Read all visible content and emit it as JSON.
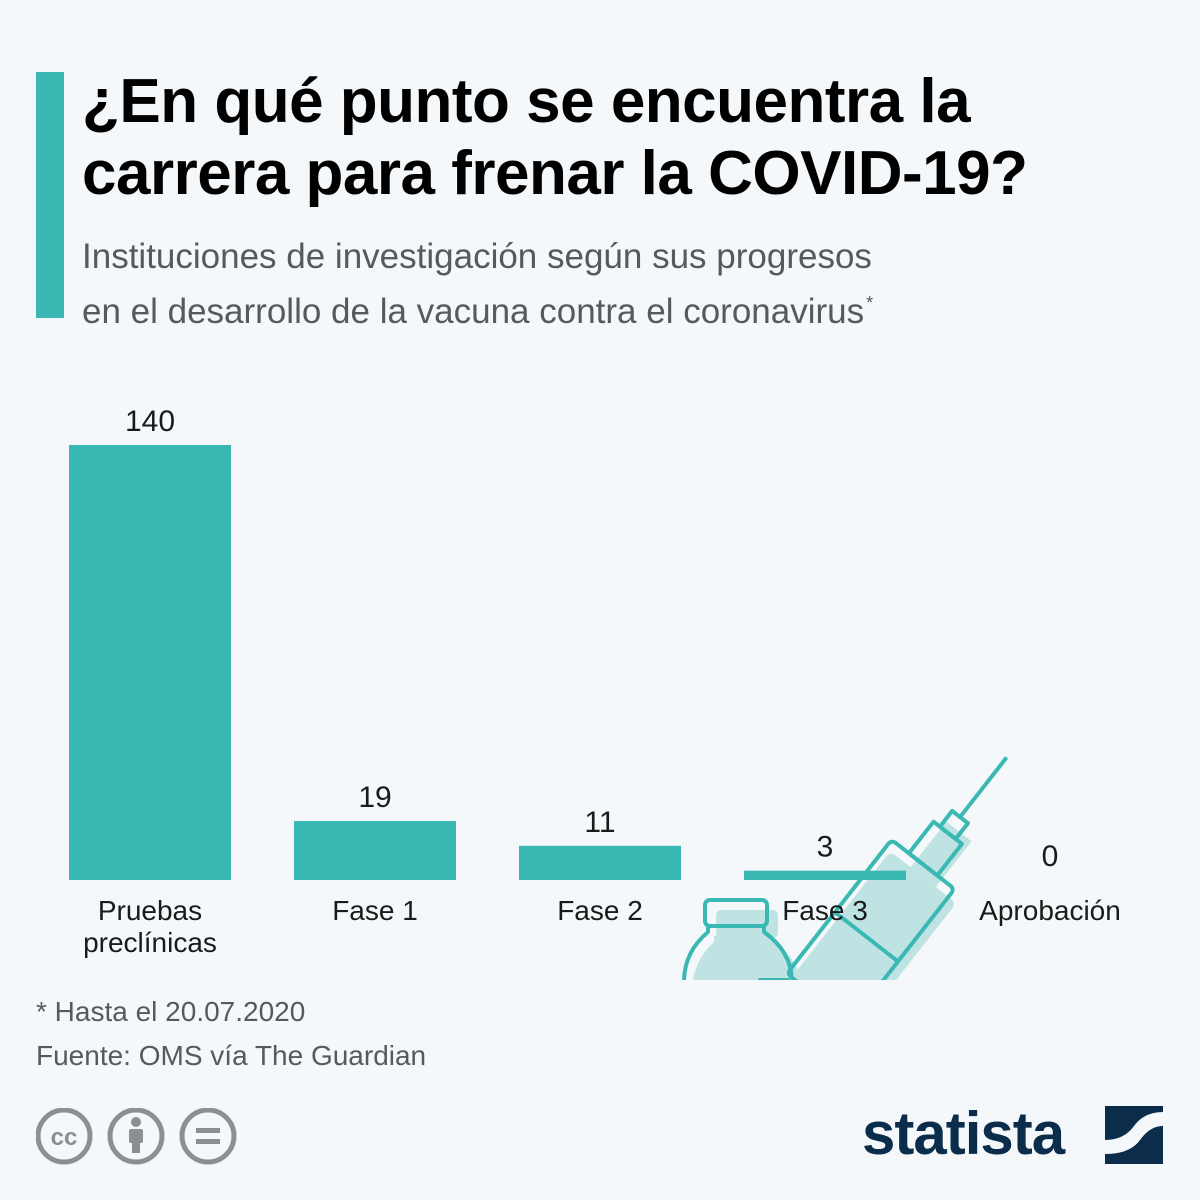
{
  "header": {
    "title_line1": "¿En qué punto se encuentra la",
    "title_line2": "carrera para frenar la COVID-19?",
    "subtitle_line1": "Instituciones de investigación según sus progresos",
    "subtitle_line2": "en el desarrollo de la vacuna contra el coronavirus",
    "subtitle_marker": "*"
  },
  "chart_data": {
    "type": "bar",
    "title": "¿En qué punto se encuentra la carrera para frenar la COVID-19?",
    "xlabel": "",
    "ylabel": "",
    "categories": [
      [
        "Pruebas",
        "preclínicas"
      ],
      [
        "Fase 1"
      ],
      [
        "Fase 2"
      ],
      [
        "Fase 3"
      ],
      [
        "Aprobación"
      ]
    ],
    "values": [
      140,
      19,
      11,
      3,
      0
    ],
    "ylim": [
      0,
      140
    ],
    "grid": false,
    "legend": "none",
    "bar_color": "#3ab8b4",
    "label_color": "#1a1a1a"
  },
  "footer": {
    "note": "* Hasta el 20.07.2020",
    "source": "Fuente: OMS vía The Guardian",
    "license_icons": [
      "cc-icon",
      "attribution-icon",
      "no-derivatives-icon"
    ],
    "brand": "statista"
  },
  "colors": {
    "accent": "#3ab8b4",
    "illustration_fill": "#bfe3e3",
    "illustration_stroke": "#3ab8b4",
    "brand": "#0b2d4b",
    "text_muted": "#555a5e",
    "icon_grey": "#8a8f93"
  }
}
